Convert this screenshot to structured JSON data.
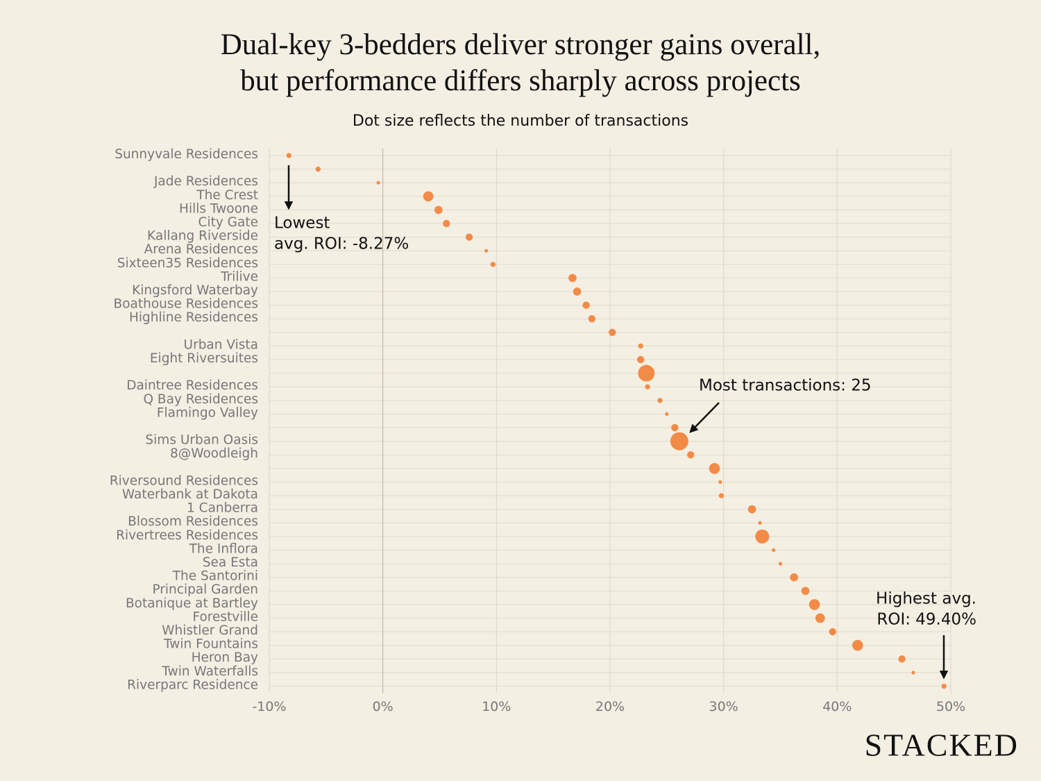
{
  "chart_data": {
    "type": "dot",
    "title": [
      "Dual-key 3-bedders deliver stronger gains overall,",
      "but performance differs sharply across projects"
    ],
    "subtitle": "Dot size reflects the number of transactions",
    "categories": [
      "Sunnyvale Residences",
      null,
      "Jade Residences",
      "The Crest",
      "Hills Twoone",
      "City Gate",
      "Kallang Riverside",
      "Arena Residences",
      "Sixteen35 Residences",
      "Trilive",
      "Kingsford Waterbay",
      "Boathouse Residences",
      "Highline Residences",
      null,
      "Urban Vista",
      "Eight Riversuites",
      null,
      "Daintree Residences",
      "Q Bay Residences",
      "Flamingo Valley",
      null,
      "Sims Urban Oasis",
      "8@Woodleigh",
      null,
      "Riversound Residences",
      "Waterbank at Dakota",
      "1 Canberra",
      "Blossom Residences",
      "Rivertrees Residences",
      "The Inflora",
      "Sea Esta",
      "The Santorini",
      "Principal Garden",
      "Botanique at Bartley",
      "Forestville",
      "Whistler Grand",
      "Twin Fountains",
      "Heron Bay",
      "Twin Waterfalls",
      "Riverparc Residence"
    ],
    "values": [
      -8.27,
      -5.7,
      -0.4,
      4.0,
      4.9,
      5.6,
      7.6,
      9.1,
      9.7,
      16.7,
      17.1,
      17.9,
      18.4,
      20.2,
      22.7,
      22.7,
      23.2,
      23.3,
      24.4,
      25.0,
      25.7,
      26.1,
      27.1,
      29.2,
      29.7,
      29.8,
      32.5,
      33.2,
      33.4,
      34.4,
      35.0,
      36.2,
      37.2,
      38.0,
      38.5,
      39.6,
      41.8,
      45.7,
      46.7,
      49.4
    ],
    "sizes": [
      2,
      2,
      1,
      8,
      5,
      4,
      4,
      1,
      2,
      5,
      5,
      4,
      4,
      4,
      2,
      4,
      21,
      2,
      2,
      1,
      4,
      25,
      4,
      9,
      1,
      2,
      5,
      1,
      15,
      1,
      1,
      5,
      5,
      9,
      7,
      4,
      9,
      4,
      1,
      2
    ],
    "color": "#f28b47",
    "xlim": [
      -10,
      50
    ],
    "xticks": [
      {
        "value": -10,
        "label": "-10%"
      },
      {
        "value": 0,
        "label": "0%"
      },
      {
        "value": 10,
        "label": "10%"
      },
      {
        "value": 20,
        "label": "20%"
      },
      {
        "value": 30,
        "label": "30%"
      },
      {
        "value": 40,
        "label": "40%"
      },
      {
        "value": 50,
        "label": "50%"
      }
    ],
    "grid": true,
    "annotations": [
      {
        "lines": [
          "Lowest",
          "avg. ROI: -8.27%"
        ]
      },
      {
        "lines": [
          "Most transactions: 25"
        ]
      },
      {
        "lines": [
          "Highest avg.",
          "ROI: 49.40%"
        ]
      }
    ],
    "logo": "STACKED"
  }
}
